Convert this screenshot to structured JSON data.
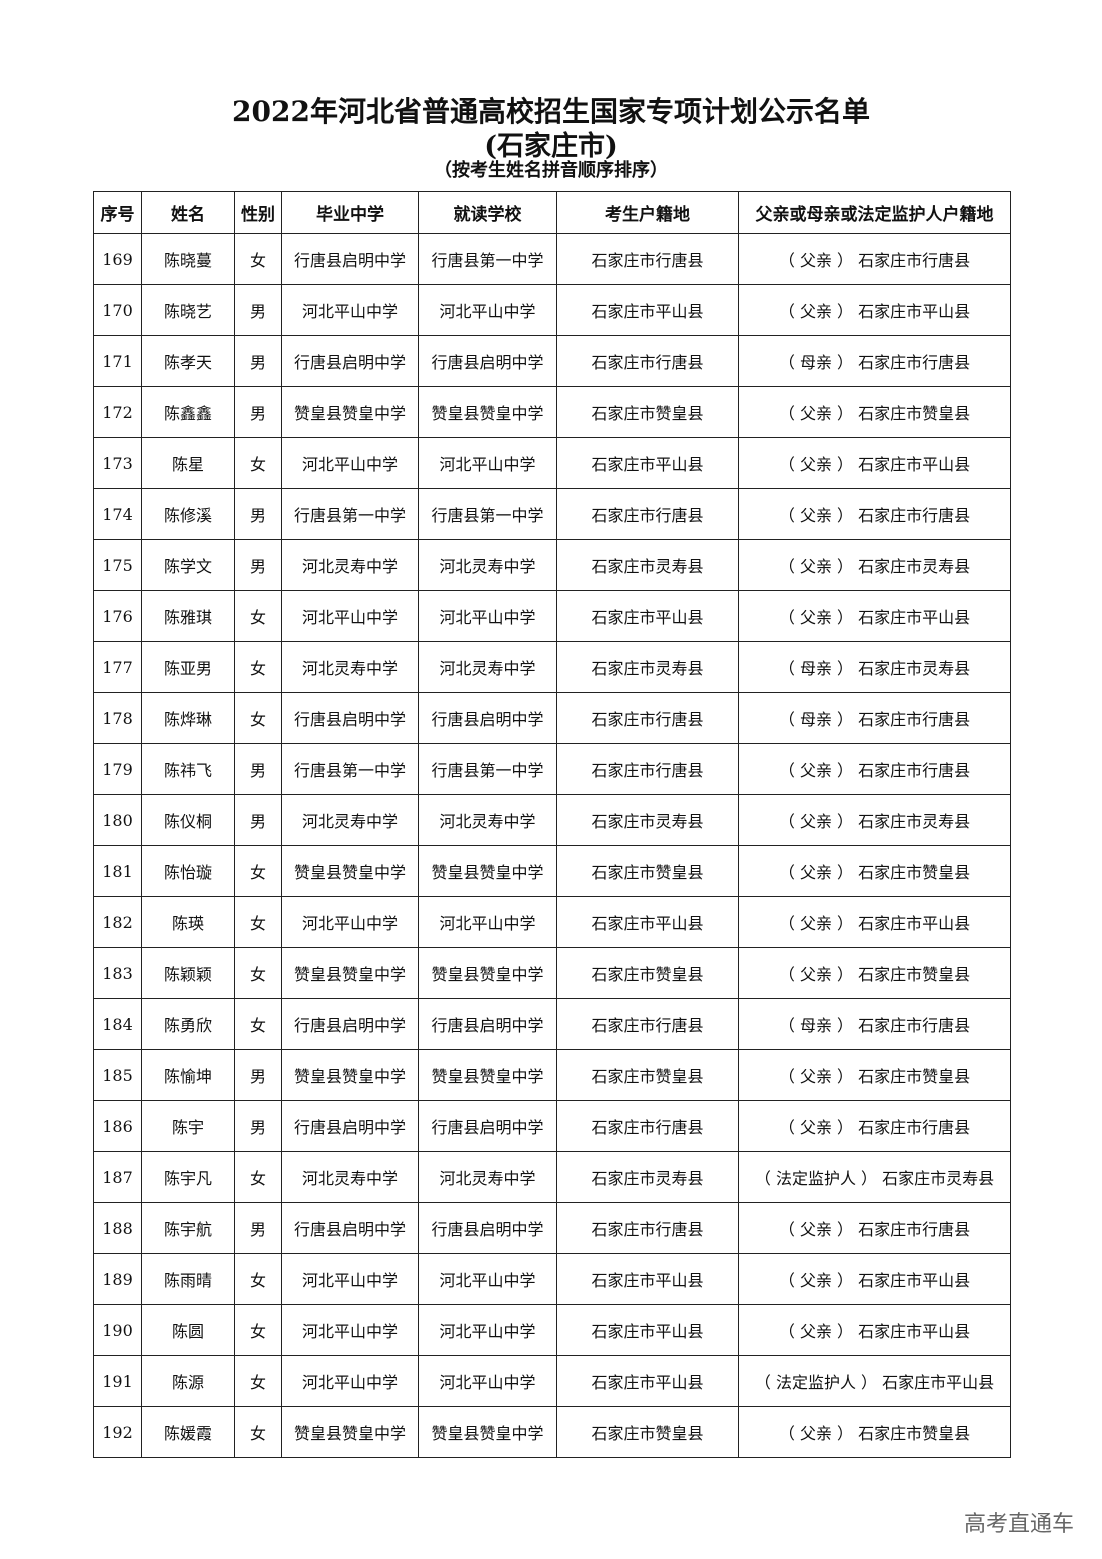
{
  "header": {
    "title": "2022年河北省普通高校招生国家专项计划公示名单",
    "subtitle": "(石家庄市)",
    "note": "（按考生姓名拼音顺序排序）"
  },
  "table": {
    "columns": [
      "序号",
      "姓名",
      "性别",
      "毕业中学",
      "就读学校",
      "考生户籍地",
      "父亲或母亲或法定监护人户籍地"
    ],
    "rows": [
      [
        "169",
        "陈晓蔓",
        "女",
        "行唐县启明中学",
        "行唐县第一中学",
        "石家庄市行唐县",
        "（ 父亲 ） 石家庄市行唐县"
      ],
      [
        "170",
        "陈晓艺",
        "男",
        "河北平山中学",
        "河北平山中学",
        "石家庄市平山县",
        "（ 父亲 ） 石家庄市平山县"
      ],
      [
        "171",
        "陈孝天",
        "男",
        "行唐县启明中学",
        "行唐县启明中学",
        "石家庄市行唐县",
        "（ 母亲 ） 石家庄市行唐县"
      ],
      [
        "172",
        "陈鑫鑫",
        "男",
        "赞皇县赞皇中学",
        "赞皇县赞皇中学",
        "石家庄市赞皇县",
        "（ 父亲 ） 石家庄市赞皇县"
      ],
      [
        "173",
        "陈星",
        "女",
        "河北平山中学",
        "河北平山中学",
        "石家庄市平山县",
        "（ 父亲 ） 石家庄市平山县"
      ],
      [
        "174",
        "陈修溪",
        "男",
        "行唐县第一中学",
        "行唐县第一中学",
        "石家庄市行唐县",
        "（ 父亲 ） 石家庄市行唐县"
      ],
      [
        "175",
        "陈学文",
        "男",
        "河北灵寿中学",
        "河北灵寿中学",
        "石家庄市灵寿县",
        "（ 父亲 ） 石家庄市灵寿县"
      ],
      [
        "176",
        "陈雅琪",
        "女",
        "河北平山中学",
        "河北平山中学",
        "石家庄市平山县",
        "（ 父亲 ） 石家庄市平山县"
      ],
      [
        "177",
        "陈亚男",
        "女",
        "河北灵寿中学",
        "河北灵寿中学",
        "石家庄市灵寿县",
        "（ 母亲 ） 石家庄市灵寿县"
      ],
      [
        "178",
        "陈烨琳",
        "女",
        "行唐县启明中学",
        "行唐县启明中学",
        "石家庄市行唐县",
        "（ 母亲 ） 石家庄市行唐县"
      ],
      [
        "179",
        "陈祎飞",
        "男",
        "行唐县第一中学",
        "行唐县第一中学",
        "石家庄市行唐县",
        "（ 父亲 ） 石家庄市行唐县"
      ],
      [
        "180",
        "陈仪桐",
        "男",
        "河北灵寿中学",
        "河北灵寿中学",
        "石家庄市灵寿县",
        "（ 父亲 ） 石家庄市灵寿县"
      ],
      [
        "181",
        "陈怡璇",
        "女",
        "赞皇县赞皇中学",
        "赞皇县赞皇中学",
        "石家庄市赞皇县",
        "（ 父亲 ） 石家庄市赞皇县"
      ],
      [
        "182",
        "陈瑛",
        "女",
        "河北平山中学",
        "河北平山中学",
        "石家庄市平山县",
        "（ 父亲 ） 石家庄市平山县"
      ],
      [
        "183",
        "陈颖颖",
        "女",
        "赞皇县赞皇中学",
        "赞皇县赞皇中学",
        "石家庄市赞皇县",
        "（ 父亲 ） 石家庄市赞皇县"
      ],
      [
        "184",
        "陈勇欣",
        "女",
        "行唐县启明中学",
        "行唐县启明中学",
        "石家庄市行唐县",
        "（ 母亲 ） 石家庄市行唐县"
      ],
      [
        "185",
        "陈愉坤",
        "男",
        "赞皇县赞皇中学",
        "赞皇县赞皇中学",
        "石家庄市赞皇县",
        "（ 父亲 ） 石家庄市赞皇县"
      ],
      [
        "186",
        "陈宇",
        "男",
        "行唐县启明中学",
        "行唐县启明中学",
        "石家庄市行唐县",
        "（ 父亲 ） 石家庄市行唐县"
      ],
      [
        "187",
        "陈宇凡",
        "女",
        "河北灵寿中学",
        "河北灵寿中学",
        "石家庄市灵寿县",
        "（ 法定监护人 ） 石家庄市灵寿县"
      ],
      [
        "188",
        "陈宇航",
        "男",
        "行唐县启明中学",
        "行唐县启明中学",
        "石家庄市行唐县",
        "（ 父亲 ） 石家庄市行唐县"
      ],
      [
        "189",
        "陈雨晴",
        "女",
        "河北平山中学",
        "河北平山中学",
        "石家庄市平山县",
        "（ 父亲 ） 石家庄市平山县"
      ],
      [
        "190",
        "陈圆",
        "女",
        "河北平山中学",
        "河北平山中学",
        "石家庄市平山县",
        "（ 父亲 ） 石家庄市平山县"
      ],
      [
        "191",
        "陈源",
        "女",
        "河北平山中学",
        "河北平山中学",
        "石家庄市平山县",
        "（ 法定监护人 ） 石家庄市平山县"
      ],
      [
        "192",
        "陈媛霞",
        "女",
        "赞皇县赞皇中学",
        "赞皇县赞皇中学",
        "石家庄市赞皇县",
        "（ 父亲 ） 石家庄市赞皇县"
      ]
    ]
  },
  "watermark": "高考直通车"
}
